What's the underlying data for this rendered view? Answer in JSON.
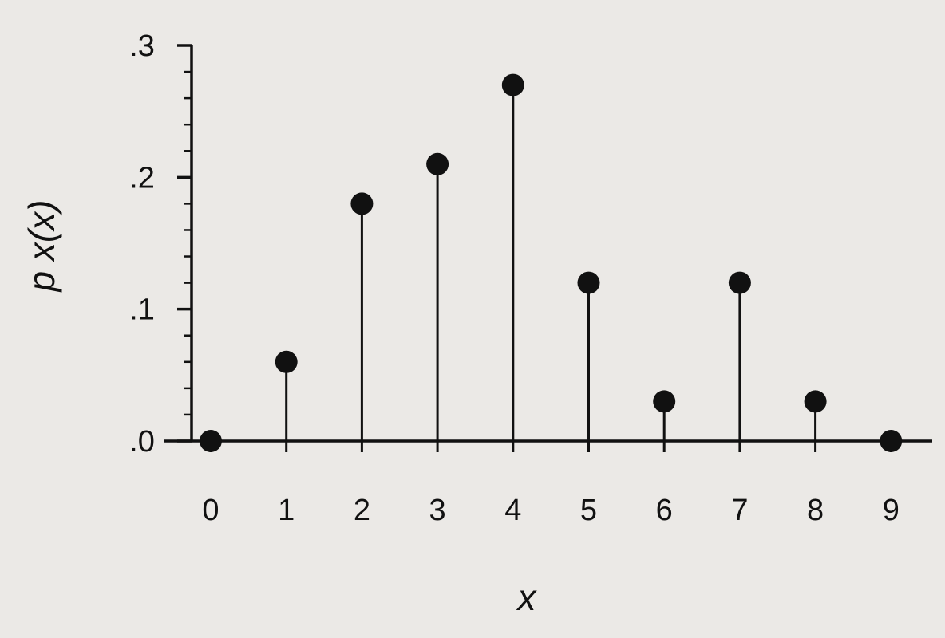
{
  "chart_data": {
    "type": "stem",
    "title": "",
    "xlabel": "x",
    "ylabel": "p x(x)",
    "x": [
      0,
      1,
      2,
      3,
      4,
      5,
      6,
      7,
      8,
      9
    ],
    "x_tick_labels": [
      "0",
      "1",
      "2",
      "3",
      "4",
      "5",
      "6",
      "7",
      "8",
      "9"
    ],
    "y": [
      0.0,
      0.06,
      0.18,
      0.21,
      0.27,
      0.12,
      0.03,
      0.12,
      0.03,
      0.0
    ],
    "y_ticks": [
      0.0,
      0.1,
      0.2,
      0.3
    ],
    "y_tick_labels": [
      ".0",
      ".1",
      ".2",
      ".3"
    ],
    "ylim": [
      0,
      0.3
    ],
    "xlim": [
      0,
      9
    ],
    "grid": false,
    "legend": "none",
    "colors": {
      "background": "#ebe9e6",
      "ink": "#111111"
    }
  }
}
